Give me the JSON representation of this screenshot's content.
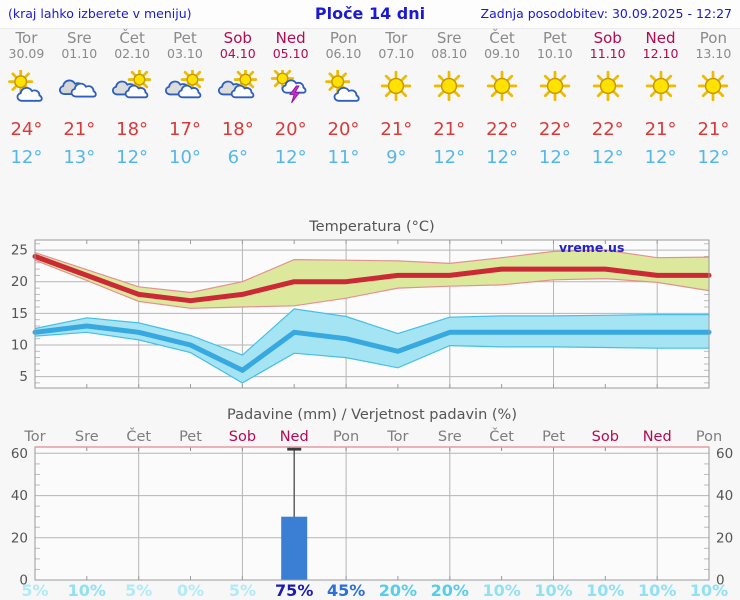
{
  "header": {
    "left_note": "(kraj lahko izberete v meniju)",
    "title": "Ploče 14 dni",
    "updated": "Zadnja posodobitev: 30.09.2025 - 12:27",
    "text_color": "#1a1ad2"
  },
  "watermark": {
    "text": "vreme.us",
    "color": "#2222cc"
  },
  "forecast": {
    "colors": {
      "day": "#8a8a8a",
      "weekend": "#b30a52",
      "tmax": "#d93a3a",
      "tmin": "#54b7ea"
    },
    "days": [
      {
        "name": "Tor",
        "date": "30.09",
        "weekend": false,
        "icon": "sun-small-cloud",
        "tmax": "24°",
        "tmin": "12°"
      },
      {
        "name": "Sre",
        "date": "01.10",
        "weekend": false,
        "icon": "cloudy",
        "tmax": "21°",
        "tmin": "13°"
      },
      {
        "name": "Čet",
        "date": "02.10",
        "weekend": false,
        "icon": "cloud-sun",
        "tmax": "18°",
        "tmin": "12°"
      },
      {
        "name": "Pet",
        "date": "03.10",
        "weekend": false,
        "icon": "cloud-sun",
        "tmax": "17°",
        "tmin": "10°"
      },
      {
        "name": "Sob",
        "date": "04.10",
        "weekend": true,
        "icon": "cloud-sun",
        "tmax": "18°",
        "tmin": "6°"
      },
      {
        "name": "Ned",
        "date": "05.10",
        "weekend": true,
        "icon": "thunderstorm",
        "tmax": "20°",
        "tmin": "12°"
      },
      {
        "name": "Pon",
        "date": "06.10",
        "weekend": false,
        "icon": "sun-small-cloud",
        "tmax": "20°",
        "tmin": "11°"
      },
      {
        "name": "Tor",
        "date": "07.10",
        "weekend": false,
        "icon": "sun",
        "tmax": "21°",
        "tmin": "9°"
      },
      {
        "name": "Sre",
        "date": "08.10",
        "weekend": false,
        "icon": "sun",
        "tmax": "21°",
        "tmin": "12°"
      },
      {
        "name": "Čet",
        "date": "09.10",
        "weekend": false,
        "icon": "sun",
        "tmax": "22°",
        "tmin": "12°"
      },
      {
        "name": "Pet",
        "date": "10.10",
        "weekend": false,
        "icon": "sun",
        "tmax": "22°",
        "tmin": "12°"
      },
      {
        "name": "Sob",
        "date": "11.10",
        "weekend": true,
        "icon": "sun",
        "tmax": "22°",
        "tmin": "12°"
      },
      {
        "name": "Ned",
        "date": "12.10",
        "weekend": true,
        "icon": "sun",
        "tmax": "21°",
        "tmin": "12°"
      },
      {
        "name": "Pon",
        "date": "13.10",
        "weekend": false,
        "icon": "sun",
        "tmax": "21°",
        "tmin": "12°"
      }
    ]
  },
  "chart_data": [
    {
      "type": "line",
      "title": "Temperatura (°C)",
      "categories": [
        "Tor",
        "Sre",
        "Čet",
        "Pet",
        "Sob",
        "Ned",
        "Pon",
        "Tor",
        "Sre",
        "Čet",
        "Pet",
        "Sob",
        "Ned",
        "Pon"
      ],
      "ylim": [
        3.2,
        26.6
      ],
      "yticks": [
        5,
        10,
        15,
        20,
        25
      ],
      "grid_day_indices": [
        2,
        4,
        6,
        8,
        10,
        12
      ],
      "series": [
        {
          "name": "max",
          "color": "#cc2936",
          "band_fill": "#dce89c",
          "band_edge": "#e59090",
          "values": [
            24,
            21,
            18,
            17,
            18,
            20,
            20,
            21,
            21,
            22,
            22,
            22,
            21,
            21
          ],
          "upper": [
            24.6,
            21.9,
            19.2,
            18.3,
            20.0,
            23.5,
            23.4,
            23.3,
            22.9,
            23.8,
            24.8,
            25.0,
            23.8,
            23.9
          ],
          "lower": [
            23.4,
            20.2,
            16.9,
            15.8,
            16.0,
            16.2,
            17.4,
            19.0,
            19.3,
            19.5,
            20.3,
            20.5,
            19.9,
            18.6
          ]
        },
        {
          "name": "min",
          "color": "#38a8e0",
          "band_fill": "#a5e4f2",
          "band_edge": "#46bfe6",
          "values": [
            12,
            13,
            12,
            10,
            6,
            12,
            11,
            9,
            12,
            12,
            12,
            12,
            12,
            12
          ],
          "upper": [
            12.6,
            14.3,
            13.5,
            11.5,
            8.4,
            15.7,
            14.5,
            11.8,
            14.4,
            14.6,
            14.6,
            14.7,
            14.8,
            14.8
          ],
          "lower": [
            11.4,
            12.0,
            10.8,
            8.8,
            4.0,
            8.7,
            8.0,
            6.4,
            9.9,
            9.7,
            9.7,
            9.6,
            9.5,
            9.5
          ]
        }
      ]
    },
    {
      "type": "bar",
      "title": "Padavine (mm) / Verjetnost padavin (%)",
      "categories": [
        "Tor",
        "Sre",
        "Čet",
        "Pet",
        "Sob",
        "Ned",
        "Pon",
        "Tor",
        "Sre",
        "Čet",
        "Pet",
        "Sob",
        "Ned",
        "Pon"
      ],
      "weekend_indices": [
        4,
        5,
        11,
        12
      ],
      "values": [
        0,
        0,
        0,
        0,
        0,
        30,
        0,
        0,
        0,
        0,
        0,
        0,
        0,
        0
      ],
      "whisker": {
        "index": 5,
        "top": 62
      },
      "ylim": [
        0,
        63
      ],
      "yticks": [
        0,
        20,
        40,
        60
      ],
      "grid_day_indices": [
        2,
        4,
        6,
        8,
        10,
        12
      ],
      "bar_color": "#3b7fd4",
      "probabilities": [
        {
          "value": 5,
          "label": "5%"
        },
        {
          "value": 10,
          "label": "10%"
        },
        {
          "value": 5,
          "label": "5%"
        },
        {
          "value": 0,
          "label": "0%"
        },
        {
          "value": 5,
          "label": "5%"
        },
        {
          "value": 75,
          "label": "75%"
        },
        {
          "value": 45,
          "label": "45%"
        },
        {
          "value": 20,
          "label": "20%"
        },
        {
          "value": 20,
          "label": "20%"
        },
        {
          "value": 10,
          "label": "10%"
        },
        {
          "value": 10,
          "label": "10%"
        },
        {
          "value": 10,
          "label": "10%"
        },
        {
          "value": 10,
          "label": "10%"
        },
        {
          "value": 10,
          "label": "10%"
        }
      ],
      "prob_colors": {
        "0": "#b2eaf7",
        "5": "#b2eaf7",
        "10": "#92e0f3",
        "20": "#55cdec",
        "45": "#2d6fd6",
        "75": "#1c1cae"
      }
    }
  ]
}
